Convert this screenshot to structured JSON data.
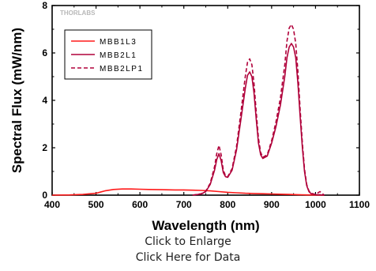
{
  "chart_data": {
    "type": "line",
    "title": "",
    "xlabel": "Wavelength (nm)",
    "ylabel": "Spectral Flux (mW/nm)",
    "xlim": [
      400,
      1100
    ],
    "ylim": [
      0,
      8
    ],
    "x_ticks": [
      "400",
      "500",
      "600",
      "700",
      "800",
      "900",
      "1000",
      "1100"
    ],
    "y_ticks": [
      "0",
      "2",
      "4",
      "6",
      "8"
    ],
    "grid": false,
    "legend_position": "top-left",
    "watermark": "THORLABS",
    "series": [
      {
        "name": "MBB1L3",
        "color": "#ff1a1a",
        "dash": "solid",
        "x": [
          400,
          440,
          470,
          500,
          520,
          540,
          560,
          580,
          600,
          620,
          650,
          680,
          700,
          720,
          740,
          760,
          780,
          800,
          820,
          840,
          860,
          880,
          900,
          920,
          940,
          960,
          980,
          1000,
          1020
        ],
        "y": [
          0,
          0.01,
          0.03,
          0.08,
          0.18,
          0.24,
          0.26,
          0.26,
          0.25,
          0.24,
          0.23,
          0.22,
          0.22,
          0.21,
          0.2,
          0.18,
          0.15,
          0.12,
          0.1,
          0.08,
          0.07,
          0.06,
          0.05,
          0.04,
          0.03,
          0.02,
          0.01,
          0.005,
          0
        ]
      },
      {
        "name": "MBB2L1",
        "color": "#b0003a",
        "dash": "solid",
        "x": [
          720,
          740,
          750,
          760,
          770,
          775,
          780,
          785,
          790,
          795,
          800,
          810,
          820,
          830,
          840,
          845,
          850,
          855,
          860,
          865,
          870,
          875,
          880,
          890,
          900,
          910,
          920,
          930,
          935,
          940,
          945,
          950,
          955,
          960,
          965,
          970,
          975,
          980,
          985,
          990,
          1000,
          1010,
          1020
        ],
        "y": [
          0,
          0.05,
          0.15,
          0.45,
          1.05,
          1.5,
          1.75,
          1.45,
          0.95,
          0.78,
          0.75,
          1.05,
          1.9,
          3.2,
          4.5,
          5.05,
          5.2,
          5.0,
          4.3,
          3.2,
          2.2,
          1.7,
          1.55,
          1.65,
          2.2,
          2.9,
          3.8,
          5.0,
          5.8,
          6.25,
          6.4,
          6.25,
          5.8,
          4.7,
          3.3,
          2.0,
          1.0,
          0.4,
          0.15,
          0.06,
          0.02,
          0.02,
          0
        ]
      },
      {
        "name": "MBB2LP1",
        "color": "#b0003a",
        "dash": "dashed",
        "x": [
          720,
          740,
          750,
          760,
          770,
          775,
          780,
          785,
          790,
          795,
          800,
          810,
          820,
          830,
          840,
          845,
          850,
          855,
          860,
          865,
          870,
          875,
          880,
          890,
          900,
          910,
          920,
          930,
          935,
          940,
          945,
          950,
          955,
          960,
          965,
          970,
          975,
          980,
          985,
          990,
          1000,
          1010,
          1020
        ],
        "y": [
          0,
          0.06,
          0.17,
          0.5,
          1.2,
          1.75,
          2.1,
          1.7,
          1.05,
          0.82,
          0.78,
          1.12,
          2.05,
          3.5,
          5.0,
          5.6,
          5.75,
          5.5,
          4.7,
          3.5,
          2.4,
          1.8,
          1.6,
          1.7,
          2.3,
          3.1,
          4.1,
          5.5,
          6.5,
          7.05,
          7.2,
          7.0,
          6.4,
          5.2,
          3.6,
          2.2,
          1.1,
          0.45,
          0.18,
          0.08,
          0.03,
          0.15,
          0
        ]
      }
    ]
  },
  "links": {
    "enlarge": "Click to Enlarge",
    "data": "Click Here for Data"
  }
}
